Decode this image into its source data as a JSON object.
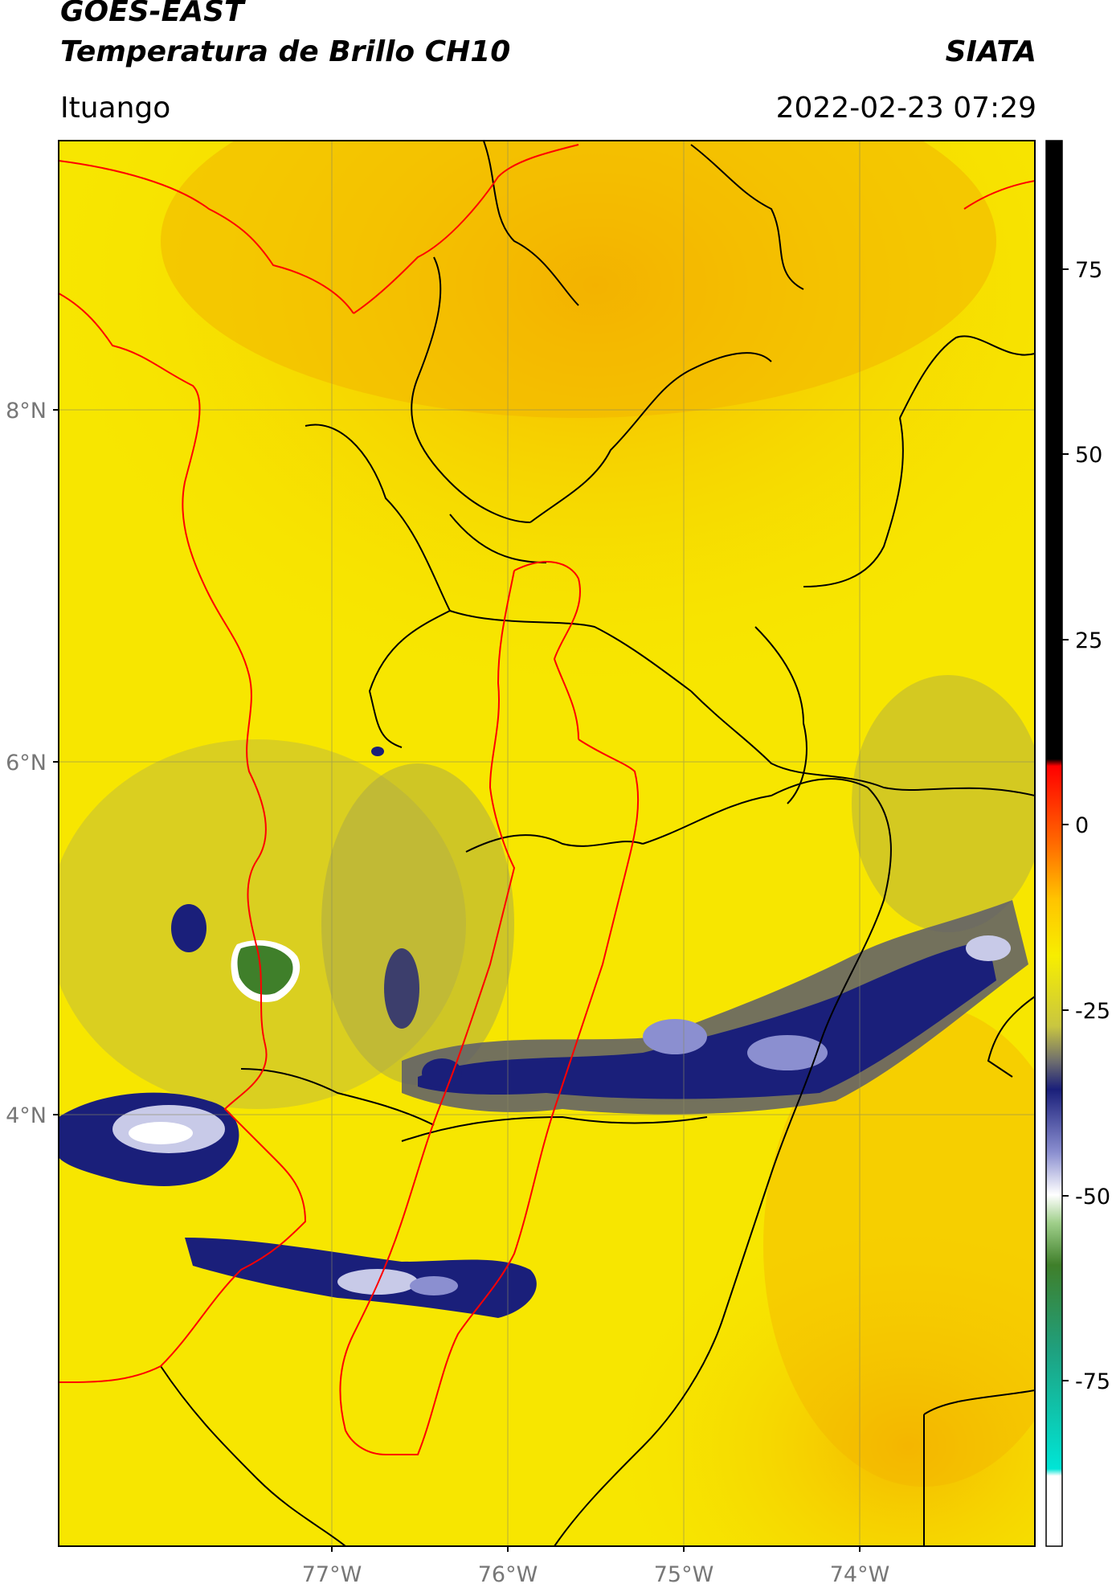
{
  "header": {
    "satellite": "GOES-EAST",
    "product": "Temperatura de Brillo CH10",
    "organization": "SIATA",
    "region": "Ituango",
    "datetime": "2022-02-23 07:29"
  },
  "map": {
    "lat_labels": [
      "8°N",
      "6°N",
      "4°N"
    ],
    "lon_labels": [
      "77°W",
      "76°W",
      "75°W",
      "74°W"
    ]
  },
  "colorbar": {
    "ticks": [
      "75",
      "50",
      "25",
      "0",
      "-25",
      "-50",
      "-75"
    ]
  },
  "colors": {
    "background_field": "#f7e600",
    "warm_field": "#f5b800",
    "cold_cloud": "#1a1f7a",
    "coldest_cloud": "#3f7f2a",
    "country_border": "#ff0000",
    "admin_border": "#000000"
  }
}
